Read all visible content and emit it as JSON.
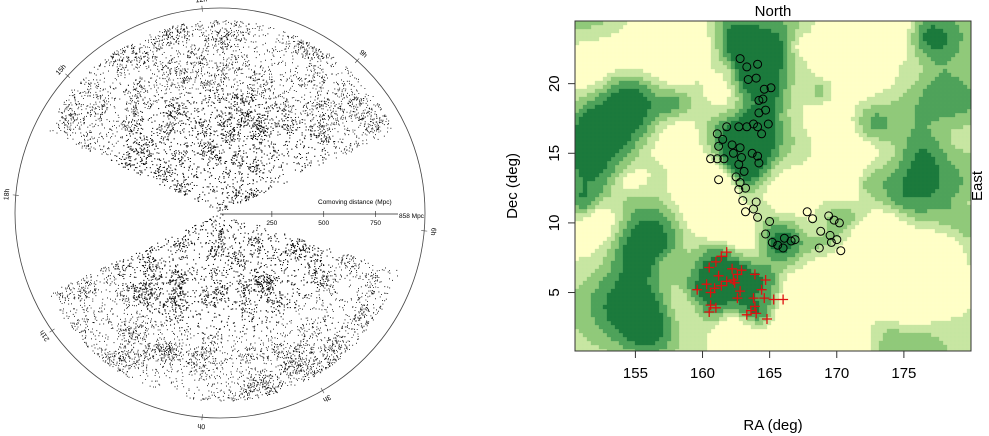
{
  "chart_data": [
    {
      "type": "scatter",
      "panel": "wedge",
      "ra_labels": [
        "12h",
        "15h",
        "9h",
        "18h",
        "6h",
        "21h",
        "3h",
        "0h"
      ],
      "scale_bar": {
        "label": "Comoving distance (Mpc)",
        "ticks": [
          250,
          500,
          750
        ],
        "end_label": "858 Mpc"
      }
    },
    {
      "type": "scatter",
      "panel": "contour",
      "title": "North",
      "right_label": "East",
      "xlabel": "RA (deg)",
      "ylabel": "Dec (deg)",
      "xlim": [
        150.5,
        180
      ],
      "ylim": [
        0.8,
        24.5
      ],
      "xticks": [
        155,
        160,
        165,
        170,
        175
      ],
      "yticks": [
        5,
        10,
        15,
        20
      ],
      "colors": [
        "#ffffc8",
        "#c8e6a2",
        "#90c97a",
        "#4fa35a",
        "#1c7a3c"
      ],
      "series": [
        {
          "marker": "circle",
          "color": "#000000",
          "points": [
            [
              162.8,
              21.8
            ],
            [
              163.3,
              21.2
            ],
            [
              164.1,
              21.4
            ],
            [
              165.1,
              19.7
            ],
            [
              164.0,
              20.4
            ],
            [
              163.4,
              20.3
            ],
            [
              164.6,
              19.6
            ],
            [
              164.2,
              18.8
            ],
            [
              164.5,
              18.9
            ],
            [
              164.7,
              18.1
            ],
            [
              164.2,
              17.9
            ],
            [
              163.8,
              17.1
            ],
            [
              164.1,
              16.9
            ],
            [
              164.9,
              17.1
            ],
            [
              164.4,
              16.4
            ],
            [
              163.3,
              16.9
            ],
            [
              162.7,
              16.9
            ],
            [
              161.8,
              16.9
            ],
            [
              161.1,
              16.4
            ],
            [
              161.5,
              16.0
            ],
            [
              161.2,
              15.5
            ],
            [
              162.2,
              15.6
            ],
            [
              162.8,
              15.4
            ],
            [
              162.3,
              15.0
            ],
            [
              162.9,
              14.7
            ],
            [
              161.1,
              14.6
            ],
            [
              160.6,
              14.6
            ],
            [
              161.6,
              14.6
            ],
            [
              162.7,
              14.2
            ],
            [
              163.7,
              15.0
            ],
            [
              164.1,
              14.8
            ],
            [
              164.2,
              14.3
            ],
            [
              163.1,
              13.7
            ],
            [
              162.5,
              13.3
            ],
            [
              162.8,
              12.9
            ],
            [
              163.2,
              12.5
            ],
            [
              162.7,
              12.4
            ],
            [
              163.0,
              11.6
            ],
            [
              161.2,
              13.1
            ],
            [
              164.0,
              11.5
            ],
            [
              163.8,
              11.0
            ],
            [
              163.2,
              10.8
            ],
            [
              164.1,
              10.4
            ],
            [
              165.0,
              10.1
            ],
            [
              164.7,
              9.2
            ],
            [
              165.2,
              8.6
            ],
            [
              166.1,
              8.9
            ],
            [
              166.6,
              8.7
            ],
            [
              166.9,
              8.8
            ],
            [
              166.0,
              8.2
            ],
            [
              165.6,
              8.4
            ],
            [
              168.7,
              8.2
            ],
            [
              169.6,
              8.6
            ],
            [
              168.2,
              10.3
            ],
            [
              169.4,
              10.5
            ],
            [
              169.8,
              10.2
            ],
            [
              170.2,
              10.0
            ],
            [
              169.5,
              9.1
            ],
            [
              170.0,
              8.8
            ],
            [
              170.3,
              8.0
            ],
            [
              167.8,
              10.8
            ],
            [
              168.8,
              9.4
            ]
          ]
        },
        {
          "marker": "plus",
          "color": "#dd1111",
          "points": [
            [
              160.5,
              6.8
            ],
            [
              161.0,
              7.2
            ],
            [
              161.4,
              7.6
            ],
            [
              161.8,
              7.9
            ],
            [
              162.2,
              6.7
            ],
            [
              162.6,
              6.3
            ],
            [
              162.9,
              6.6
            ],
            [
              160.3,
              5.6
            ],
            [
              160.9,
              5.3
            ],
            [
              159.6,
              5.2
            ],
            [
              160.6,
              5.0
            ],
            [
              161.4,
              5.5
            ],
            [
              161.8,
              5.8
            ],
            [
              162.4,
              5.7
            ],
            [
              161.2,
              6.2
            ],
            [
              162.8,
              5.1
            ],
            [
              160.6,
              4.1
            ],
            [
              160.5,
              3.6
            ],
            [
              161.0,
              3.9
            ],
            [
              162.6,
              4.6
            ],
            [
              163.9,
              6.3
            ],
            [
              164.7,
              5.9
            ],
            [
              164.4,
              5.2
            ],
            [
              164.6,
              4.6
            ],
            [
              165.3,
              4.5
            ],
            [
              166.0,
              4.5
            ],
            [
              163.8,
              4.6
            ],
            [
              164.0,
              3.5
            ],
            [
              163.6,
              3.7
            ],
            [
              163.3,
              3.4
            ],
            [
              164.8,
              3.1
            ],
            [
              163.9,
              4.0
            ],
            [
              162.3,
              5.9
            ]
          ]
        }
      ]
    }
  ]
}
